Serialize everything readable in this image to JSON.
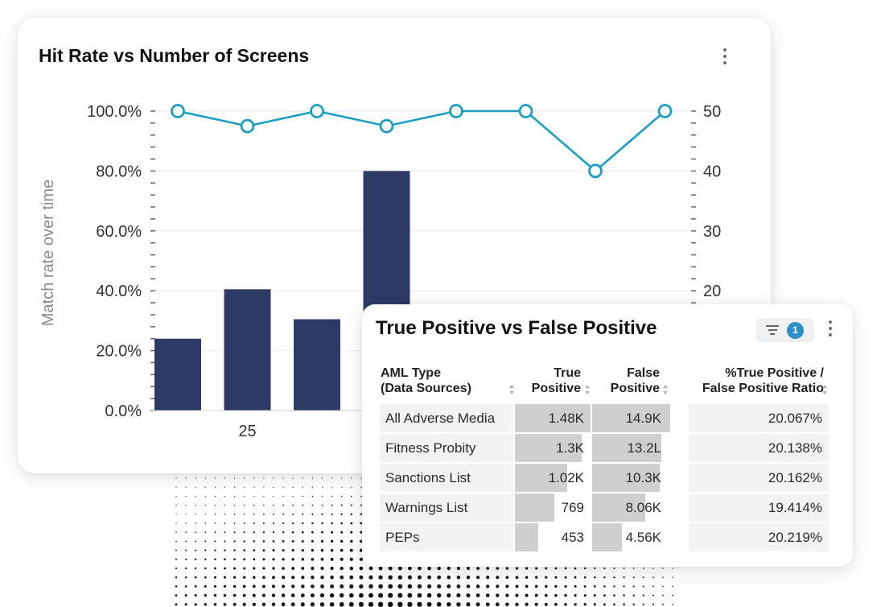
{
  "chart_card": {
    "title": "Hit Rate vs Number of Screens",
    "menu_icon": "kebab-menu-icon"
  },
  "chart_data": {
    "type": "bar",
    "title": "Hit Rate vs Number of Screens",
    "ylabel": "Match rate over time",
    "y_ticks": [
      "0.0%",
      "20.0%",
      "40.0%",
      "60.0%",
      "80.0%",
      "100.0%"
    ],
    "y_range": [
      0,
      100
    ],
    "y2_ticks": [
      "20",
      "30",
      "40",
      "50"
    ],
    "y2_range": [
      0,
      50
    ],
    "x_tick_labels": [
      {
        "index": 1,
        "label": "25"
      }
    ],
    "series": [
      {
        "axis": "left",
        "kind": "bar",
        "color": "#2e3a66",
        "values": [
          24,
          40.5,
          30.5,
          80
        ]
      },
      {
        "axis": "right",
        "kind": "line",
        "color": "#1c9dc4",
        "values": [
          50,
          47.5,
          50,
          47.5,
          50,
          50,
          40,
          50
        ]
      }
    ],
    "grid": true
  },
  "table_card": {
    "title": "True Positive vs False Positive",
    "filter": {
      "icon": "filter-icon",
      "count": "1"
    },
    "menu_icon": "kebab-menu-icon",
    "columns": [
      {
        "line1": "AML Type",
        "line2": "(Data Sources)"
      },
      {
        "line1": "True",
        "line2": "Positive"
      },
      {
        "line1": "False",
        "line2": "Positive"
      },
      {
        "line1": "%True Positive /",
        "line2": "False Positive Ratio"
      }
    ],
    "rows": [
      {
        "name": "All Adverse Media",
        "tp": "1.48K",
        "tp_fraction": 1.0,
        "fp": "14.9K",
        "fp_fraction": 1.0,
        "ratio": "20.067%"
      },
      {
        "name": "Fitness Probity",
        "tp": "1.3K",
        "tp_fraction": 0.88,
        "fp": "13.2L",
        "fp_fraction": 0.89,
        "ratio": "20.138%"
      },
      {
        "name": "Sanctions List",
        "tp": "1.02K",
        "tp_fraction": 0.69,
        "fp": "10.3K",
        "fp_fraction": 0.87,
        "ratio": "20.162%"
      },
      {
        "name": "Warnings List",
        "tp": "769",
        "tp_fraction": 0.52,
        "fp": "8.06K",
        "fp_fraction": 0.68,
        "ratio": "19.414%"
      },
      {
        "name": "PEPs",
        "tp": "453",
        "tp_fraction": 0.31,
        "fp": "4.56K",
        "fp_fraction": 0.38,
        "ratio": "20.219%"
      }
    ]
  },
  "colors": {
    "bar": "#2e3a66",
    "line": "#1c9dc4",
    "badge": "#2c8fc8"
  }
}
